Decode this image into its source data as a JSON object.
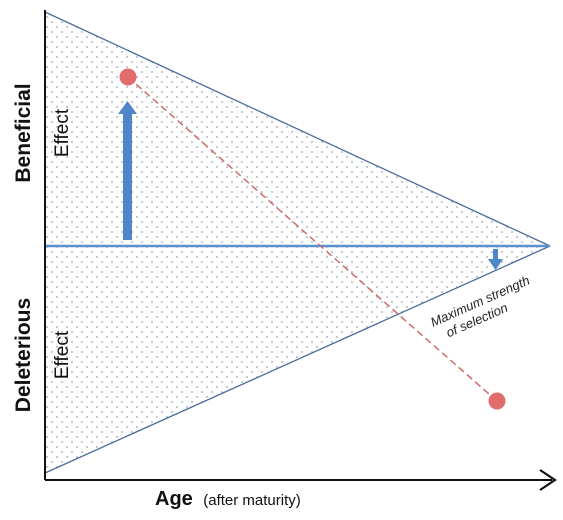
{
  "labels": {
    "beneficial": "Beneficial",
    "beneficial_effect": "Effect",
    "deleterious": "Deleterious",
    "deleterious_effect": "Effect",
    "age_main": "Age",
    "age_sub": "(after maturity)",
    "max_strength_line1": "Maximum strength",
    "max_strength_line2": "of selection"
  },
  "colors": {
    "axis": "#111111",
    "envelope": "#4a6a9a",
    "baseline": "#5b8fce",
    "arrow": "#4f86c9",
    "dot_fill": "#e06c6c",
    "dashed_line": "#d06a6a",
    "stipple": "#9aa3b2"
  },
  "icons": {
    "up_arrow": "up-arrow-icon",
    "down_arrow": "down-arrow-icon"
  }
}
